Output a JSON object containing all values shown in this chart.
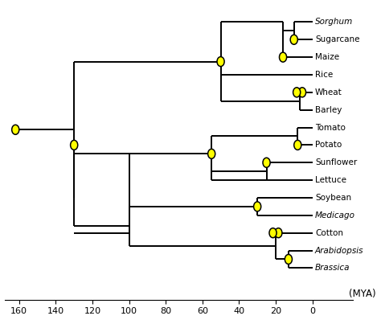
{
  "background_color": "#ffffff",
  "line_color": "#000000",
  "oval_fc": "#ffff00",
  "oval_ec": "#000000",
  "taxa": [
    "Sorghum",
    "Sugarcane",
    "Maize",
    "Rice",
    "Wheat",
    "Barley",
    "Tomato",
    "Potato",
    "Sunflower",
    "Lettuce",
    "Soybean",
    "Medicago",
    "Cotton",
    "Arabidopsis",
    "Brassica"
  ],
  "italic_taxa": [
    "Sorghum",
    "Medicago",
    "Arabidopsis",
    "Brassica"
  ],
  "taxa_y": {
    "Sorghum": 14,
    "Sugarcane": 13,
    "Maize": 12,
    "Rice": 11,
    "Wheat": 10,
    "Barley": 9,
    "Tomato": 8,
    "Potato": 7,
    "Sunflower": 6,
    "Lettuce": 5,
    "Soybean": 4,
    "Medicago": 3,
    "Cotton": 2,
    "Arabidopsis": 1,
    "Brassica": 0
  },
  "xticks": [
    0,
    20,
    40,
    60,
    80,
    100,
    120,
    140,
    160
  ],
  "xlabel": "(MYA)",
  "figsize": [
    4.74,
    3.98
  ],
  "dpi": 100
}
